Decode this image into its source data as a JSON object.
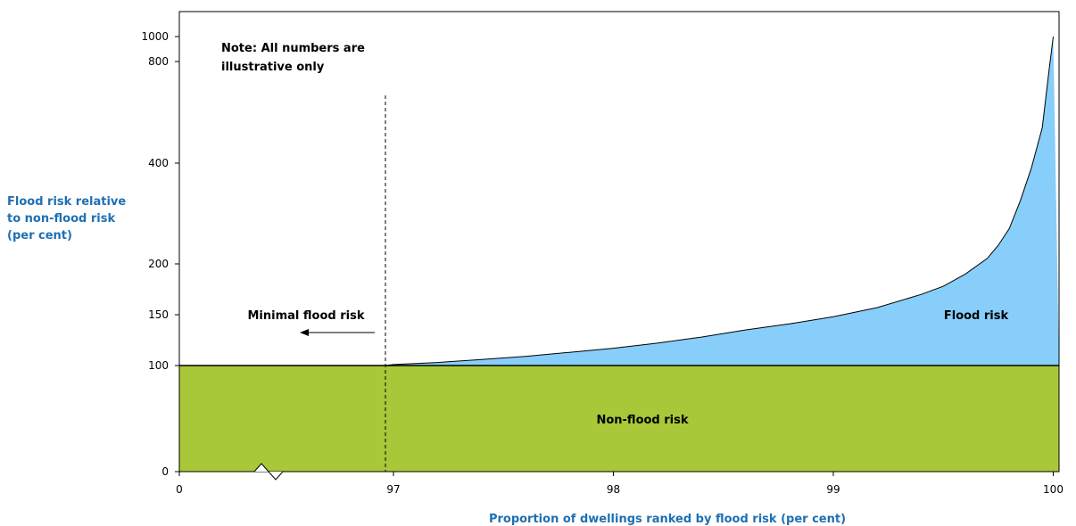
{
  "chart_data": {
    "type": "area",
    "ylabel_lines": [
      "Flood risk relative",
      "to non-flood risk",
      "(per cent)"
    ],
    "xlabel": "Proportion of dwellings ranked by flood risk (per cent)",
    "x_ticks": [
      "0",
      "97",
      "98",
      "99",
      "100"
    ],
    "y_ticks": [
      "0",
      "100",
      "150",
      "200",
      "400",
      "800",
      "1000"
    ],
    "ylim": [
      0,
      1000
    ],
    "axis_break": true,
    "note_lines": [
      "Note: All numbers are",
      "illustrative only"
    ],
    "threshold_x": 96.95,
    "series": [
      {
        "name": "Non-flood risk",
        "color": "#a8c839",
        "constant_value": 100
      },
      {
        "name": "Flood risk",
        "color": "#87cefa",
        "points": [
          [
            96.95,
            100
          ],
          [
            97.0,
            101
          ],
          [
            97.2,
            103
          ],
          [
            97.4,
            106
          ],
          [
            97.6,
            109
          ],
          [
            97.8,
            113
          ],
          [
            98.0,
            117
          ],
          [
            98.2,
            122
          ],
          [
            98.4,
            128
          ],
          [
            98.6,
            135
          ],
          [
            98.8,
            141
          ],
          [
            99.0,
            148
          ],
          [
            99.2,
            157
          ],
          [
            99.4,
            170
          ],
          [
            99.5,
            178
          ],
          [
            99.6,
            190
          ],
          [
            99.7,
            211
          ],
          [
            99.75,
            237
          ],
          [
            99.8,
            270
          ],
          [
            99.85,
            325
          ],
          [
            99.9,
            390
          ],
          [
            99.95,
            540
          ],
          [
            99.98,
            760
          ],
          [
            100.0,
            1000
          ]
        ]
      }
    ],
    "minimal_label": "Minimal flood risk",
    "colors": {
      "axis_label": "#1f6fb2",
      "threshold": "#000000",
      "plot_border": "#000000"
    }
  }
}
